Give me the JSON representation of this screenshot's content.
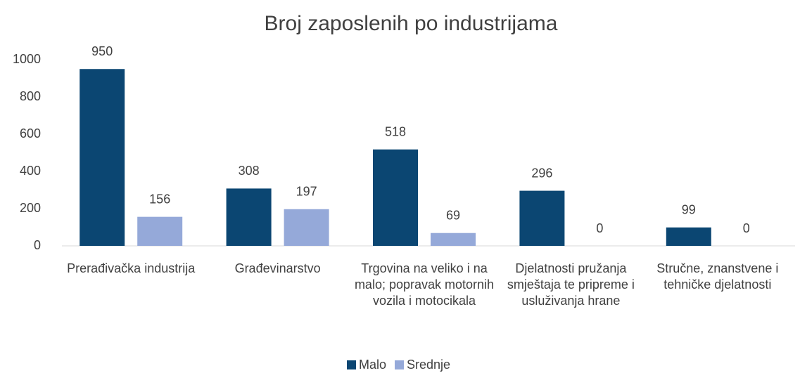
{
  "chart_data": {
    "type": "bar",
    "title": "Broj zaposlenih po industrijama",
    "categories": [
      "Prerađivačka industrija",
      "Građevinarstvo",
      "Trgovina na veliko i na malo; popravak motornih vozila i motocikala",
      "Djelatnosti pružanja smještaja te pripreme i usluživanja hrane",
      "Stručne, znanstvene i tehničke djelatnosti"
    ],
    "series": [
      {
        "name": "Malo",
        "color": "#0b4672",
        "values": [
          950,
          308,
          518,
          296,
          99
        ]
      },
      {
        "name": "Srednje",
        "color": "#95a9d9",
        "values": [
          156,
          197,
          69,
          0,
          0
        ]
      }
    ],
    "ylim": [
      0,
      1000
    ],
    "yticks": [
      0,
      200,
      400,
      600,
      800,
      1000
    ],
    "grid": false,
    "legend": "bottom"
  }
}
